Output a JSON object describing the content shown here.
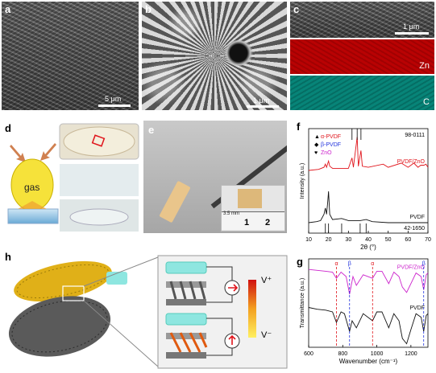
{
  "panels": {
    "a": {
      "label": "a",
      "scale": "5 μm"
    },
    "b": {
      "label": "b",
      "scale": "1 μm"
    },
    "c": {
      "label": "c",
      "scale": "1 μm",
      "map1": "Zn",
      "map2": "C"
    },
    "d": {
      "label": "d",
      "gas": "gas"
    },
    "e": {
      "label": "e",
      "ruler": [
        "1",
        "2"
      ],
      "ruler_small": "3.5 mm"
    },
    "f": {
      "label": "f"
    },
    "g": {
      "label": "g"
    },
    "h": {
      "label": "h",
      "vplus": "V⁺",
      "vminus": "V⁻"
    }
  },
  "colors": {
    "zn_map": "#e0141b",
    "c_map": "#2bb8b0",
    "pvdf_zno": "#e0141b",
    "pvdf": "#111111",
    "alpha": "#e0141b",
    "beta": "#2233dd",
    "zno": "#cc22cc"
  },
  "chart_data": [
    {
      "type": "line",
      "panel": "f",
      "xlabel": "2θ (°)",
      "ylabel": "Intensity (a.u.)",
      "xlim": [
        10,
        70
      ],
      "xticks": [
        "10",
        "20",
        "30",
        "40",
        "50",
        "60",
        "70"
      ],
      "legend": [
        {
          "symbol": "▲",
          "text": "α-PVDF",
          "color": "#e0141b"
        },
        {
          "symbol": "◆",
          "text": "β-PVDF",
          "color": "#2233dd"
        },
        {
          "symbol": "♥",
          "text": "ZnO",
          "color": "#cc22cc"
        }
      ],
      "references": [
        {
          "label": "98-0111",
          "x": [
            31.8,
            34.4,
            36.3
          ]
        },
        {
          "label": "42-1650",
          "x": [
            18.4,
            20.0,
            26.6,
            35.9,
            38.9
          ]
        }
      ],
      "series": [
        {
          "name": "PVDF/ZnO",
          "color": "#e0141b",
          "x": [
            10,
            15,
            17.7,
            18.4,
            19.0,
            20.0,
            20.6,
            22,
            26.5,
            30,
            31.8,
            32.5,
            34.4,
            35,
            36.3,
            37,
            40,
            47.5,
            50,
            56.6,
            60,
            62.9,
            65,
            66.4,
            68,
            69,
            70
          ],
          "y": [
            0.6,
            0.61,
            0.63,
            0.66,
            0.63,
            0.69,
            0.64,
            0.62,
            0.62,
            0.62,
            0.72,
            0.63,
            0.92,
            0.64,
            0.79,
            0.64,
            0.63,
            0.66,
            0.63,
            0.67,
            0.63,
            0.67,
            0.63,
            0.65,
            0.65,
            0.66,
            0.63
          ]
        },
        {
          "name": "PVDF",
          "color": "#111111",
          "x": [
            10,
            14,
            16,
            17.7,
            18.4,
            19.0,
            19.6,
            20.0,
            20.6,
            22,
            26.6,
            30,
            33,
            35.9,
            38.9,
            42,
            50,
            60,
            70
          ],
          "y": [
            0.1,
            0.11,
            0.12,
            0.18,
            0.24,
            0.18,
            0.3,
            0.4,
            0.18,
            0.13,
            0.14,
            0.12,
            0.12,
            0.12,
            0.13,
            0.11,
            0.1,
            0.1,
            0.1
          ]
        }
      ]
    },
    {
      "type": "line",
      "panel": "g",
      "xlabel": "Wavenumber (cm⁻¹)",
      "ylabel": "Transmittance (a.u.)",
      "xlim": [
        600,
        1300
      ],
      "xticks": [
        "600",
        "800",
        "1000",
        "1200"
      ],
      "markers": [
        {
          "label": "α",
          "x": 763,
          "color": "#e0141b"
        },
        {
          "label": "β",
          "x": 840,
          "color": "#2233dd"
        },
        {
          "label": "α",
          "x": 975,
          "color": "#e0141b"
        },
        {
          "label": "β",
          "x": 1275,
          "color": "#2233dd"
        }
      ],
      "series": [
        {
          "name": "PVDF/ZnO",
          "color": "#cc22cc",
          "x": [
            600,
            650,
            700,
            740,
            763,
            790,
            820,
            840,
            860,
            880,
            920,
            975,
            1000,
            1030,
            1070,
            1100,
            1130,
            1150,
            1175,
            1200,
            1230,
            1260,
            1275,
            1290,
            1300
          ],
          "y": [
            0.88,
            0.87,
            0.86,
            0.85,
            0.78,
            0.85,
            0.8,
            0.6,
            0.8,
            0.7,
            0.82,
            0.78,
            0.86,
            0.86,
            0.72,
            0.85,
            0.8,
            0.68,
            0.62,
            0.72,
            0.84,
            0.8,
            0.65,
            0.82,
            0.84
          ]
        },
        {
          "name": "PVDF",
          "color": "#111111",
          "x": [
            600,
            650,
            700,
            740,
            763,
            790,
            810,
            840,
            855,
            880,
            920,
            975,
            1000,
            1030,
            1070,
            1100,
            1130,
            1150,
            1175,
            1200,
            1230,
            1260,
            1275,
            1290,
            1300
          ],
          "y": [
            0.45,
            0.43,
            0.42,
            0.4,
            0.28,
            0.4,
            0.38,
            0.18,
            0.3,
            0.22,
            0.38,
            0.3,
            0.4,
            0.4,
            0.22,
            0.38,
            0.3,
            0.1,
            0.04,
            0.2,
            0.38,
            0.34,
            0.18,
            0.36,
            0.38
          ]
        }
      ]
    }
  ]
}
